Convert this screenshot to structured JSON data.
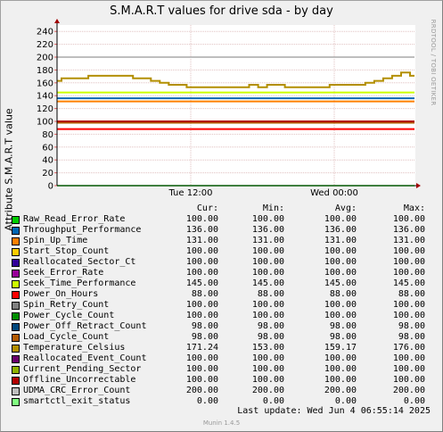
{
  "title": "S.M.A.R.T values for drive sda - by day",
  "watermark": "RRDTOOL / TOBI OETIKER",
  "chart_data": {
    "type": "line",
    "ylabel": "Attribute S.M.A.R.T value",
    "ylim": [
      0,
      250
    ],
    "yticks": [
      0,
      20,
      40,
      60,
      80,
      100,
      120,
      140,
      160,
      180,
      200,
      220,
      240
    ],
    "xticks": [
      "Tue 12:00",
      "Wed 00:00"
    ],
    "grid": true,
    "series": [
      {
        "name": "Raw_Read_Error_Rate",
        "color": "#00cc00",
        "values": [
          100
        ]
      },
      {
        "name": "Throughput_Performance",
        "color": "#0066b3",
        "values": [
          136
        ]
      },
      {
        "name": "Spin_Up_Time",
        "color": "#ff8000",
        "values": [
          131
        ]
      },
      {
        "name": "Start_Stop_Count",
        "color": "#ffcc00",
        "values": [
          100
        ]
      },
      {
        "name": "Reallocated_Sector_Ct",
        "color": "#330099",
        "values": [
          100
        ]
      },
      {
        "name": "Seek_Error_Rate",
        "color": "#990099",
        "values": [
          100
        ]
      },
      {
        "name": "Seek_Time_Performance",
        "color": "#ccff00",
        "values": [
          145
        ]
      },
      {
        "name": "Power_On_Hours",
        "color": "#ff0000",
        "values": [
          88
        ]
      },
      {
        "name": "Spin_Retry_Count",
        "color": "#808080",
        "values": [
          100
        ]
      },
      {
        "name": "Power_Cycle_Count",
        "color": "#008f00",
        "values": [
          100
        ]
      },
      {
        "name": "Power_Off_Retract_Count",
        "color": "#00487d",
        "values": [
          98
        ]
      },
      {
        "name": "Load_Cycle_Count",
        "color": "#b35a00",
        "values": [
          98
        ]
      },
      {
        "name": "Temperature_Celsius",
        "color": "#b38f00",
        "values": [
          163,
          167,
          167,
          167,
          171,
          171,
          171,
          171,
          171,
          167,
          167,
          163,
          160,
          157,
          157,
          153,
          153,
          153,
          153,
          153,
          153,
          153,
          157,
          153,
          157,
          157,
          153,
          153,
          153,
          153,
          153,
          157,
          157,
          157,
          157,
          160,
          163,
          167,
          171,
          176,
          171
        ]
      },
      {
        "name": "Reallocated_Event_Count",
        "color": "#6b006b",
        "values": [
          100
        ]
      },
      {
        "name": "Current_Pending_Sector",
        "color": "#8fb300",
        "values": [
          100
        ]
      },
      {
        "name": "Offline_Uncorrectable",
        "color": "#b30000",
        "values": [
          100
        ]
      },
      {
        "name": "UDMA_CRC_Error_Count",
        "color": "#bebebe",
        "values": [
          200
        ]
      },
      {
        "name": "smartctl_exit_status",
        "color": "#80ff80",
        "values": [
          0
        ]
      }
    ]
  },
  "legend": {
    "headers": {
      "cur": "Cur:",
      "min": "Min:",
      "avg": "Avg:",
      "max": "Max:"
    },
    "rows": [
      {
        "name": "Raw_Read_Error_Rate",
        "cur": "100.00",
        "min": "100.00",
        "avg": "100.00",
        "max": "100.00"
      },
      {
        "name": "Throughput_Performance",
        "cur": "136.00",
        "min": "136.00",
        "avg": "136.00",
        "max": "136.00"
      },
      {
        "name": "Spin_Up_Time",
        "cur": "131.00",
        "min": "131.00",
        "avg": "131.00",
        "max": "131.00"
      },
      {
        "name": "Start_Stop_Count",
        "cur": "100.00",
        "min": "100.00",
        "avg": "100.00",
        "max": "100.00"
      },
      {
        "name": "Reallocated_Sector_Ct",
        "cur": "100.00",
        "min": "100.00",
        "avg": "100.00",
        "max": "100.00"
      },
      {
        "name": "Seek_Error_Rate",
        "cur": "100.00",
        "min": "100.00",
        "avg": "100.00",
        "max": "100.00"
      },
      {
        "name": "Seek_Time_Performance",
        "cur": "145.00",
        "min": "145.00",
        "avg": "145.00",
        "max": "145.00"
      },
      {
        "name": "Power_On_Hours",
        "cur": "88.00",
        "min": "88.00",
        "avg": "88.00",
        "max": "88.00"
      },
      {
        "name": "Spin_Retry_Count",
        "cur": "100.00",
        "min": "100.00",
        "avg": "100.00",
        "max": "100.00"
      },
      {
        "name": "Power_Cycle_Count",
        "cur": "100.00",
        "min": "100.00",
        "avg": "100.00",
        "max": "100.00"
      },
      {
        "name": "Power_Off_Retract_Count",
        "cur": "98.00",
        "min": "98.00",
        "avg": "98.00",
        "max": "98.00"
      },
      {
        "name": "Load_Cycle_Count",
        "cur": "98.00",
        "min": "98.00",
        "avg": "98.00",
        "max": "98.00"
      },
      {
        "name": "Temperature_Celsius",
        "cur": "171.24",
        "min": "153.00",
        "avg": "159.17",
        "max": "176.00"
      },
      {
        "name": "Reallocated_Event_Count",
        "cur": "100.00",
        "min": "100.00",
        "avg": "100.00",
        "max": "100.00"
      },
      {
        "name": "Current_Pending_Sector",
        "cur": "100.00",
        "min": "100.00",
        "avg": "100.00",
        "max": "100.00"
      },
      {
        "name": "Offline_Uncorrectable",
        "cur": "100.00",
        "min": "100.00",
        "avg": "100.00",
        "max": "100.00"
      },
      {
        "name": "UDMA_CRC_Error_Count",
        "cur": "200.00",
        "min": "200.00",
        "avg": "200.00",
        "max": "200.00"
      },
      {
        "name": "smartctl_exit_status",
        "cur": "0.00",
        "min": "0.00",
        "avg": "0.00",
        "max": "0.00"
      }
    ]
  },
  "last_update": "Last update:  Wed Jun  4 06:55:14 2025",
  "footer": "Munin 1.4.5"
}
